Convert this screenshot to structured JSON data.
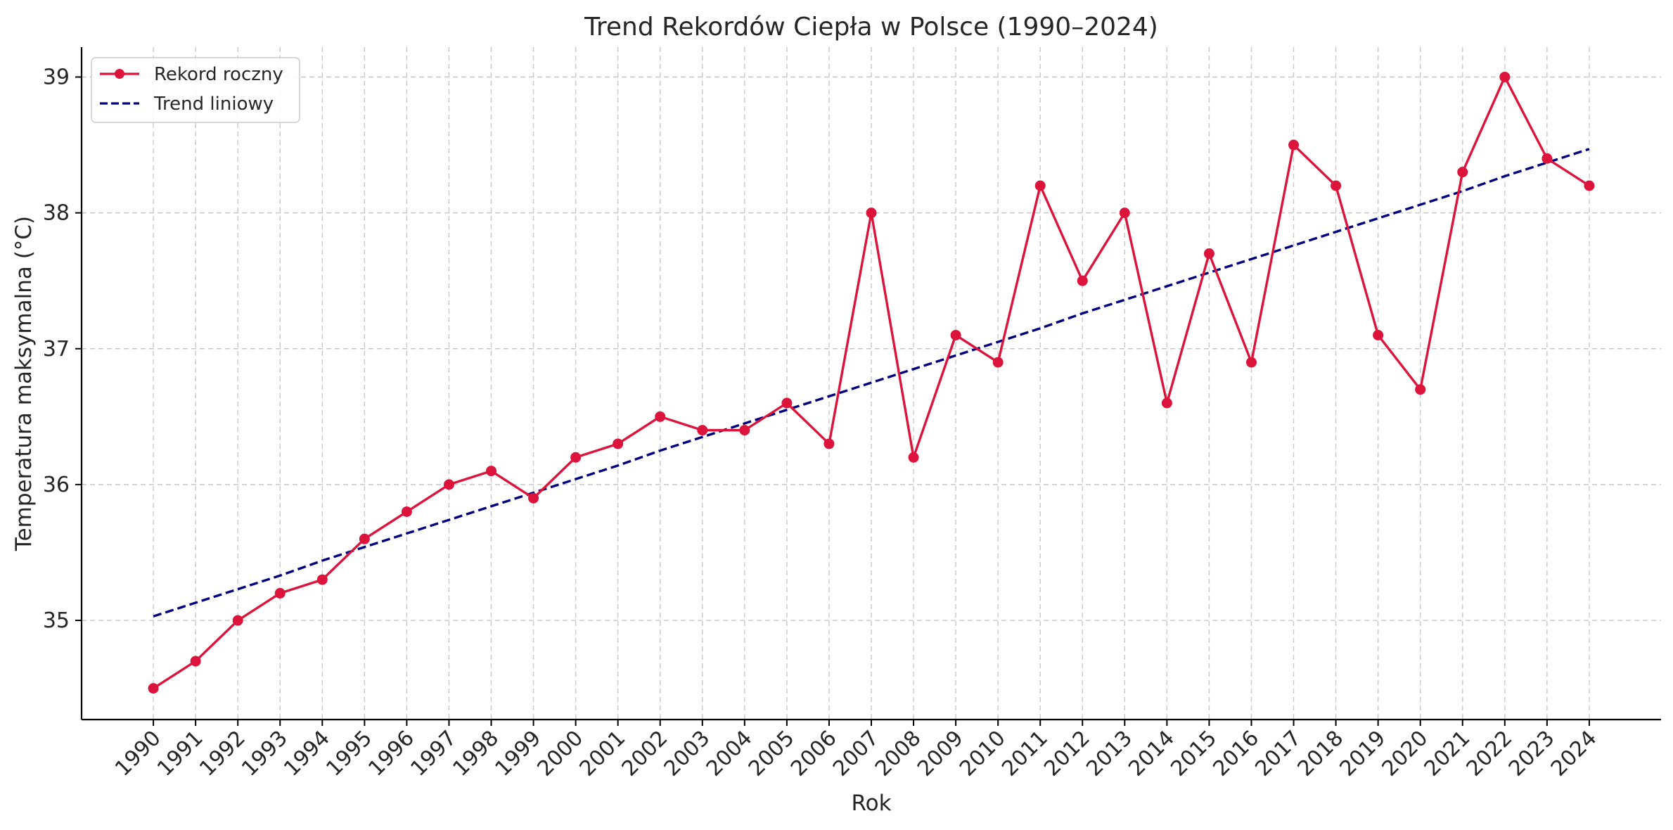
{
  "chart_data": {
    "type": "line",
    "title": "Trend Rekordów Ciepła w Polsce (1990–2024)",
    "xlabel": "Rok",
    "ylabel": "Temperatura maksymalna (°C)",
    "x": [
      1990,
      1991,
      1992,
      1993,
      1994,
      1995,
      1996,
      1997,
      1998,
      1999,
      2000,
      2001,
      2002,
      2003,
      2004,
      2005,
      2006,
      2007,
      2008,
      2009,
      2010,
      2011,
      2012,
      2013,
      2014,
      2015,
      2016,
      2017,
      2018,
      2019,
      2020,
      2021,
      2022,
      2023,
      2024
    ],
    "xlim": [
      1988.3,
      2025.7
    ],
    "ylim": [
      34.27,
      39.22
    ],
    "yticks": [
      35,
      36,
      37,
      38,
      39
    ],
    "grid": true,
    "legend_position": "top-left",
    "series": [
      {
        "name": "Rekord roczny",
        "color": "#dc143c",
        "style": "solid-marker",
        "values": [
          34.5,
          34.7,
          35.0,
          35.2,
          35.3,
          35.6,
          35.8,
          36.0,
          36.1,
          35.9,
          36.2,
          36.3,
          36.5,
          36.4,
          36.4,
          36.6,
          36.3,
          38.0,
          36.2,
          37.1,
          36.9,
          38.2,
          37.5,
          38.0,
          36.6,
          37.7,
          36.9,
          38.5,
          38.2,
          37.1,
          36.7,
          38.3,
          39.0,
          38.4,
          38.2
        ]
      },
      {
        "name": "Trend liniowy",
        "color": "#000080",
        "style": "dashed",
        "values": [
          35.03,
          35.13,
          35.23,
          35.33,
          35.44,
          35.54,
          35.64,
          35.74,
          35.84,
          35.94,
          36.04,
          36.14,
          36.25,
          36.35,
          36.45,
          36.55,
          36.65,
          36.75,
          36.85,
          36.95,
          37.05,
          37.15,
          37.26,
          37.36,
          37.46,
          37.56,
          37.66,
          37.76,
          37.86,
          37.96,
          38.06,
          38.16,
          38.27,
          38.37,
          38.47
        ]
      }
    ]
  }
}
